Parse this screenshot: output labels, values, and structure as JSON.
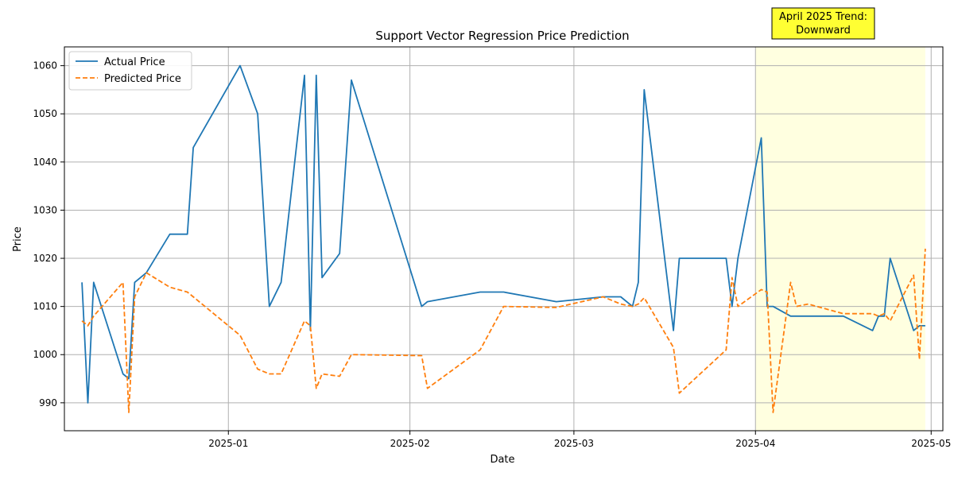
{
  "chart_data": {
    "type": "line",
    "title": "Support Vector Regression Price Prediction",
    "xlabel": "Date",
    "ylabel": "Price",
    "x_ticks": [
      "2025-01",
      "2025-02",
      "2025-03",
      "2025-04",
      "2025-05"
    ],
    "y_ticks": [
      990,
      1000,
      1010,
      1020,
      1030,
      1040,
      1050,
      1060
    ],
    "grid": true,
    "legend_position": "top-left",
    "annotation": {
      "text_lines": [
        "April 2025 Trend:",
        "Downward"
      ],
      "box_color": "#ffff33",
      "highlight_color": "#ffffe0",
      "highlight_range": [
        "2025-04-01",
        "2025-04-30"
      ]
    },
    "series": [
      {
        "name": "Actual Price",
        "color": "#1f77b4",
        "style": "solid",
        "points": [
          [
            "2024-12-07",
            1015
          ],
          [
            "2024-12-08",
            990
          ],
          [
            "2024-12-09",
            1015
          ],
          [
            "2024-12-14",
            996
          ],
          [
            "2024-12-15",
            995
          ],
          [
            "2024-12-16",
            1015
          ],
          [
            "2024-12-18",
            1017
          ],
          [
            "2024-12-22",
            1025
          ],
          [
            "2024-12-25",
            1025
          ],
          [
            "2024-12-26",
            1043
          ],
          [
            "2025-01-03",
            1060
          ],
          [
            "2025-01-06",
            1050
          ],
          [
            "2025-01-08",
            1010
          ],
          [
            "2025-01-10",
            1015
          ],
          [
            "2025-01-14",
            1058
          ],
          [
            "2025-01-15",
            1005
          ],
          [
            "2025-01-16",
            1058
          ],
          [
            "2025-01-17",
            1016
          ],
          [
            "2025-01-20",
            1021
          ],
          [
            "2025-01-22",
            1057
          ],
          [
            "2025-02-03",
            1010
          ],
          [
            "2025-02-04",
            1011
          ],
          [
            "2025-02-13",
            1013
          ],
          [
            "2025-02-17",
            1013
          ],
          [
            "2025-02-26",
            1011
          ],
          [
            "2025-03-06",
            1012
          ],
          [
            "2025-03-09",
            1012
          ],
          [
            "2025-03-11",
            1010
          ],
          [
            "2025-03-12",
            1015
          ],
          [
            "2025-03-13",
            1055
          ],
          [
            "2025-03-18",
            1005
          ],
          [
            "2025-03-19",
            1020
          ],
          [
            "2025-03-27",
            1020
          ],
          [
            "2025-03-28",
            1010
          ],
          [
            "2025-03-29",
            1020
          ],
          [
            "2025-04-02",
            1045
          ],
          [
            "2025-04-03",
            1010
          ],
          [
            "2025-04-04",
            1010
          ],
          [
            "2025-04-07",
            1008
          ],
          [
            "2025-04-16",
            1008
          ],
          [
            "2025-04-21",
            1005
          ],
          [
            "2025-04-22",
            1008
          ],
          [
            "2025-04-23",
            1008
          ],
          [
            "2025-04-24",
            1020
          ],
          [
            "2025-04-28",
            1005
          ],
          [
            "2025-04-29",
            1006
          ],
          [
            "2025-04-30",
            1006
          ]
        ]
      },
      {
        "name": "Predicted Price",
        "color": "#ff7f0e",
        "style": "dashed",
        "points": [
          [
            "2024-12-07",
            1007
          ],
          [
            "2024-12-08",
            1006
          ],
          [
            "2024-12-09",
            1008
          ],
          [
            "2024-12-14",
            1015
          ],
          [
            "2024-12-15",
            988
          ],
          [
            "2024-12-16",
            1012
          ],
          [
            "2024-12-18",
            1017
          ],
          [
            "2024-12-22",
            1014
          ],
          [
            "2024-12-25",
            1013
          ],
          [
            "2024-12-26",
            1012
          ],
          [
            "2025-01-03",
            1004
          ],
          [
            "2025-01-06",
            997
          ],
          [
            "2025-01-08",
            996
          ],
          [
            "2025-01-10",
            996
          ],
          [
            "2025-01-14",
            1007
          ],
          [
            "2025-01-15",
            1006
          ],
          [
            "2025-01-16",
            993
          ],
          [
            "2025-01-17",
            996
          ],
          [
            "2025-01-20",
            995.5
          ],
          [
            "2025-01-22",
            1000
          ],
          [
            "2025-02-03",
            999.8
          ],
          [
            "2025-02-04",
            993
          ],
          [
            "2025-02-13",
            1001
          ],
          [
            "2025-02-17",
            1010
          ],
          [
            "2025-02-26",
            1009.8
          ],
          [
            "2025-03-06",
            1012
          ],
          [
            "2025-03-09",
            1010.5
          ],
          [
            "2025-03-11",
            1010
          ],
          [
            "2025-03-12",
            1010.5
          ],
          [
            "2025-03-13",
            1011.8
          ],
          [
            "2025-03-18",
            1001.5
          ],
          [
            "2025-03-19",
            992
          ],
          [
            "2025-03-27",
            1001
          ],
          [
            "2025-03-28",
            1016
          ],
          [
            "2025-03-29",
            1010
          ],
          [
            "2025-04-02",
            1013.5
          ],
          [
            "2025-04-03",
            1013
          ],
          [
            "2025-04-04",
            988
          ],
          [
            "2025-04-07",
            1015
          ],
          [
            "2025-04-08",
            1010
          ],
          [
            "2025-04-10",
            1010.5
          ],
          [
            "2025-04-16",
            1008.5
          ],
          [
            "2025-04-21",
            1008.5
          ],
          [
            "2025-04-22",
            1008
          ],
          [
            "2025-04-23",
            1008.5
          ],
          [
            "2025-04-24",
            1007
          ],
          [
            "2025-04-28",
            1016.5
          ],
          [
            "2025-04-29",
            999
          ],
          [
            "2025-04-30",
            1022
          ]
        ]
      }
    ]
  }
}
